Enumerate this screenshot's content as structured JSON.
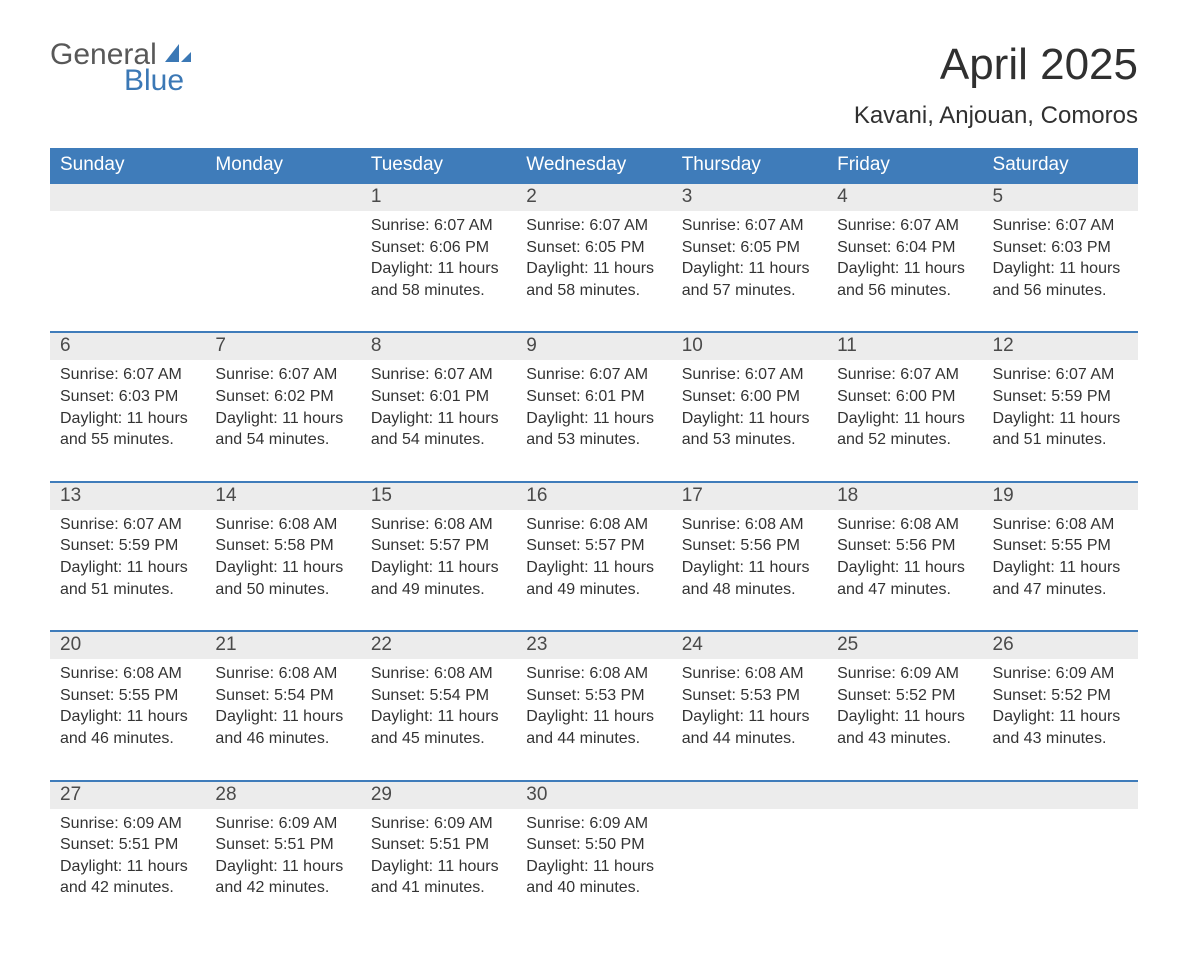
{
  "brand": {
    "word1": "General",
    "word2": "Blue",
    "accent_color": "#3b78b5",
    "text_color": "#585858"
  },
  "title": "April 2025",
  "location": "Kavani, Anjouan, Comoros",
  "colors": {
    "header_bg": "#3f7cba",
    "header_text": "#ffffff",
    "daynum_bg": "#ececec",
    "week_divider": "#3f7cba",
    "body_text": "#333333",
    "page_bg": "#ffffff"
  },
  "weekdays": [
    "Sunday",
    "Monday",
    "Tuesday",
    "Wednesday",
    "Thursday",
    "Friday",
    "Saturday"
  ],
  "weeks": [
    [
      null,
      null,
      {
        "n": "1",
        "sr": "Sunrise: 6:07 AM",
        "ss": "Sunset: 6:06 PM",
        "dl": "Daylight: 11 hours and 58 minutes."
      },
      {
        "n": "2",
        "sr": "Sunrise: 6:07 AM",
        "ss": "Sunset: 6:05 PM",
        "dl": "Daylight: 11 hours and 58 minutes."
      },
      {
        "n": "3",
        "sr": "Sunrise: 6:07 AM",
        "ss": "Sunset: 6:05 PM",
        "dl": "Daylight: 11 hours and 57 minutes."
      },
      {
        "n": "4",
        "sr": "Sunrise: 6:07 AM",
        "ss": "Sunset: 6:04 PM",
        "dl": "Daylight: 11 hours and 56 minutes."
      },
      {
        "n": "5",
        "sr": "Sunrise: 6:07 AM",
        "ss": "Sunset: 6:03 PM",
        "dl": "Daylight: 11 hours and 56 minutes."
      }
    ],
    [
      {
        "n": "6",
        "sr": "Sunrise: 6:07 AM",
        "ss": "Sunset: 6:03 PM",
        "dl": "Daylight: 11 hours and 55 minutes."
      },
      {
        "n": "7",
        "sr": "Sunrise: 6:07 AM",
        "ss": "Sunset: 6:02 PM",
        "dl": "Daylight: 11 hours and 54 minutes."
      },
      {
        "n": "8",
        "sr": "Sunrise: 6:07 AM",
        "ss": "Sunset: 6:01 PM",
        "dl": "Daylight: 11 hours and 54 minutes."
      },
      {
        "n": "9",
        "sr": "Sunrise: 6:07 AM",
        "ss": "Sunset: 6:01 PM",
        "dl": "Daylight: 11 hours and 53 minutes."
      },
      {
        "n": "10",
        "sr": "Sunrise: 6:07 AM",
        "ss": "Sunset: 6:00 PM",
        "dl": "Daylight: 11 hours and 53 minutes."
      },
      {
        "n": "11",
        "sr": "Sunrise: 6:07 AM",
        "ss": "Sunset: 6:00 PM",
        "dl": "Daylight: 11 hours and 52 minutes."
      },
      {
        "n": "12",
        "sr": "Sunrise: 6:07 AM",
        "ss": "Sunset: 5:59 PM",
        "dl": "Daylight: 11 hours and 51 minutes."
      }
    ],
    [
      {
        "n": "13",
        "sr": "Sunrise: 6:07 AM",
        "ss": "Sunset: 5:59 PM",
        "dl": "Daylight: 11 hours and 51 minutes."
      },
      {
        "n": "14",
        "sr": "Sunrise: 6:08 AM",
        "ss": "Sunset: 5:58 PM",
        "dl": "Daylight: 11 hours and 50 minutes."
      },
      {
        "n": "15",
        "sr": "Sunrise: 6:08 AM",
        "ss": "Sunset: 5:57 PM",
        "dl": "Daylight: 11 hours and 49 minutes."
      },
      {
        "n": "16",
        "sr": "Sunrise: 6:08 AM",
        "ss": "Sunset: 5:57 PM",
        "dl": "Daylight: 11 hours and 49 minutes."
      },
      {
        "n": "17",
        "sr": "Sunrise: 6:08 AM",
        "ss": "Sunset: 5:56 PM",
        "dl": "Daylight: 11 hours and 48 minutes."
      },
      {
        "n": "18",
        "sr": "Sunrise: 6:08 AM",
        "ss": "Sunset: 5:56 PM",
        "dl": "Daylight: 11 hours and 47 minutes."
      },
      {
        "n": "19",
        "sr": "Sunrise: 6:08 AM",
        "ss": "Sunset: 5:55 PM",
        "dl": "Daylight: 11 hours and 47 minutes."
      }
    ],
    [
      {
        "n": "20",
        "sr": "Sunrise: 6:08 AM",
        "ss": "Sunset: 5:55 PM",
        "dl": "Daylight: 11 hours and 46 minutes."
      },
      {
        "n": "21",
        "sr": "Sunrise: 6:08 AM",
        "ss": "Sunset: 5:54 PM",
        "dl": "Daylight: 11 hours and 46 minutes."
      },
      {
        "n": "22",
        "sr": "Sunrise: 6:08 AM",
        "ss": "Sunset: 5:54 PM",
        "dl": "Daylight: 11 hours and 45 minutes."
      },
      {
        "n": "23",
        "sr": "Sunrise: 6:08 AM",
        "ss": "Sunset: 5:53 PM",
        "dl": "Daylight: 11 hours and 44 minutes."
      },
      {
        "n": "24",
        "sr": "Sunrise: 6:08 AM",
        "ss": "Sunset: 5:53 PM",
        "dl": "Daylight: 11 hours and 44 minutes."
      },
      {
        "n": "25",
        "sr": "Sunrise: 6:09 AM",
        "ss": "Sunset: 5:52 PM",
        "dl": "Daylight: 11 hours and 43 minutes."
      },
      {
        "n": "26",
        "sr": "Sunrise: 6:09 AM",
        "ss": "Sunset: 5:52 PM",
        "dl": "Daylight: 11 hours and 43 minutes."
      }
    ],
    [
      {
        "n": "27",
        "sr": "Sunrise: 6:09 AM",
        "ss": "Sunset: 5:51 PM",
        "dl": "Daylight: 11 hours and 42 minutes."
      },
      {
        "n": "28",
        "sr": "Sunrise: 6:09 AM",
        "ss": "Sunset: 5:51 PM",
        "dl": "Daylight: 11 hours and 42 minutes."
      },
      {
        "n": "29",
        "sr": "Sunrise: 6:09 AM",
        "ss": "Sunset: 5:51 PM",
        "dl": "Daylight: 11 hours and 41 minutes."
      },
      {
        "n": "30",
        "sr": "Sunrise: 6:09 AM",
        "ss": "Sunset: 5:50 PM",
        "dl": "Daylight: 11 hours and 40 minutes."
      },
      null,
      null,
      null
    ]
  ]
}
